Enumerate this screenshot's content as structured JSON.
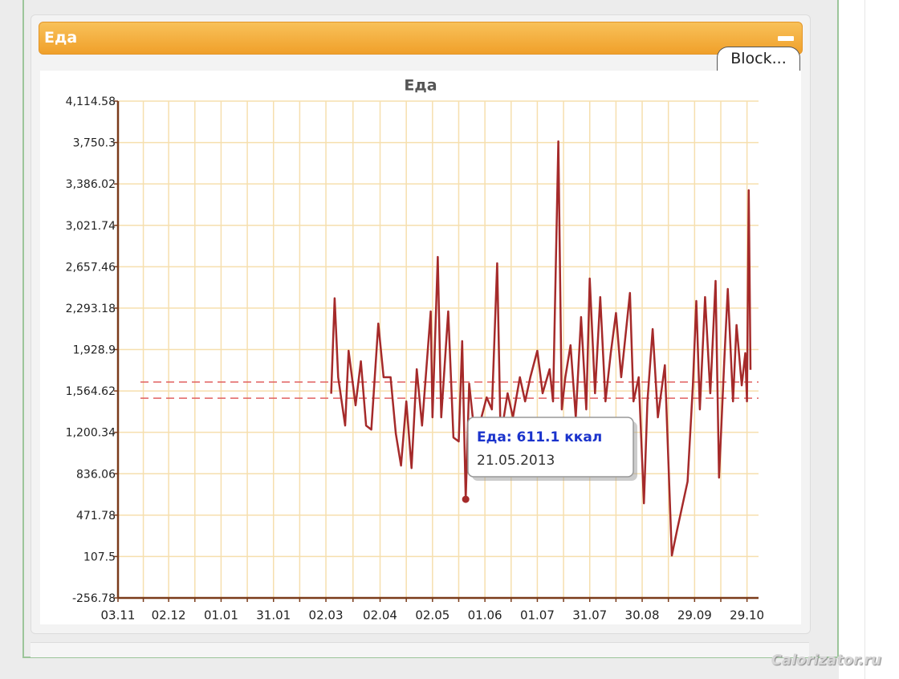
{
  "panel": {
    "title": "Еда",
    "tab": "Block..."
  },
  "watermark": "Calorizator.ru",
  "chart_data": {
    "type": "line",
    "title": "Еда",
    "x": [
      "05.03",
      "07.03",
      "09.03",
      "13.03",
      "15.03",
      "19.03",
      "22.03",
      "25.03",
      "28.03",
      "01.04",
      "04.04",
      "08.04",
      "11.04",
      "14.04",
      "17.04",
      "20.04",
      "23.04",
      "26.04",
      "01.05",
      "02.05",
      "05.05",
      "07.05",
      "11.05",
      "14.05",
      "17.05",
      "19.05",
      "21.05",
      "23.05",
      "26.05",
      "30.05",
      "02.06",
      "05.06",
      "08.06",
      "10.06",
      "14.06",
      "17.06",
      "21.06",
      "24.06",
      "27.06",
      "01.07",
      "04.07",
      "08.07",
      "10.07",
      "13.07",
      "15.07",
      "17.07",
      "20.07",
      "23.07",
      "26.07",
      "29.07",
      "31.07",
      "03.08",
      "06.08",
      "09.08",
      "12.08",
      "15.08",
      "18.08",
      "23.08",
      "25.08",
      "28.08",
      "31.08",
      "02.09",
      "05.09",
      "08.09",
      "12.09",
      "16.09",
      "19.09",
      "25.09",
      "28.09",
      "30.09",
      "02.10",
      "05.10",
      "08.10",
      "11.10",
      "13.10",
      "16.10",
      "18.10",
      "21.10",
      "23.10",
      "26.10",
      "28.10",
      "29.10",
      "30.10",
      "31.10"
    ],
    "series": [
      {
        "color": "#a52a2a",
        "values": [
          1540,
          2380,
          1685,
          1260,
          1918,
          1438,
          1826,
          1260,
          1225,
          2158,
          1685,
          1685,
          1190,
          908,
          1473,
          886,
          1756,
          1260,
          2264,
          1332,
          2744,
          1332,
          2264,
          1155,
          1120,
          2003,
          611.1,
          1629,
          1190,
          1332,
          1508,
          1402,
          2688,
          1155,
          1544,
          1332,
          1685,
          1473,
          1685,
          1918,
          1544,
          1756,
          1473,
          3761,
          1402,
          1685,
          1967,
          1332,
          2215,
          1402,
          2554,
          1544,
          2391,
          1473,
          1897,
          2250,
          1685,
          2427,
          1473,
          1685,
          576,
          1473,
          2109,
          1332,
          1791,
          117,
          343,
          767,
          1614,
          2356,
          1402,
          2391,
          1544,
          2533,
          802,
          1826,
          2462,
          1473,
          2144,
          1614,
          1897,
          1473,
          3331,
          1750
        ]
      }
    ],
    "xlim": [
      "03.11",
      "31.10"
    ],
    "xticks": [
      "03.11",
      "02.12",
      "01.01",
      "31.01",
      "02.03",
      "02.04",
      "02.05",
      "01.06",
      "01.07",
      "31.07",
      "30.08",
      "29.09",
      "29.10"
    ],
    "ylim": [
      -256.78,
      4114.58
    ],
    "yticks": [
      -256.78,
      107.5,
      471.78,
      836.06,
      {
        "value": 1200.34,
        "label": "1,200.34"
      },
      {
        "value": 1564.62,
        "label": "1,564.62"
      },
      {
        "value": 1928.9,
        "label": "1,928.9"
      },
      {
        "value": 2293.18,
        "label": "2,293.18"
      },
      {
        "value": 2657.46,
        "label": "2,657.46"
      },
      {
        "value": 3021.74,
        "label": "3,021.74"
      },
      {
        "value": 3386.02,
        "label": "3,386.02"
      },
      {
        "value": 3750.3,
        "label": "3,750.3"
      },
      {
        "value": 4114.58,
        "label": "4,114.58"
      }
    ],
    "grid": true,
    "reference_lines": [
      1643,
      1501
    ],
    "reference_color": "#e06060",
    "tooltip": {
      "label": "Еда:",
      "unit": "ккал",
      "date": "21.05.2013",
      "index": 26
    }
  }
}
